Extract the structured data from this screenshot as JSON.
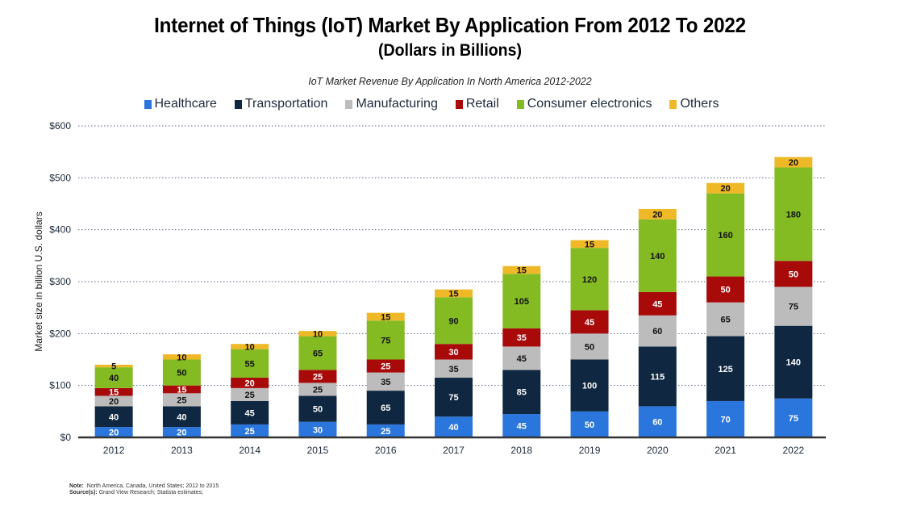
{
  "header": {
    "title": "Internet of Things (IoT) Market By Application From 2012 To 2022",
    "units": "(Dollars in Billions)",
    "chart_subtitle": "IoT Market Revenue By Application In North America 2012-2022"
  },
  "footer": {
    "note_label": "Note:",
    "note_text": "North America, Canada, United States; 2012 to 2015",
    "source_label": "Source(s):",
    "source_text": "Grand View Research; Statista estimates;"
  },
  "chart_data": {
    "type": "bar",
    "stacked": true,
    "title": "Internet of Things (IoT) Market By Application From 2012 To 2022",
    "subtitle": "IoT Market Revenue By Application In North America 2012-2022",
    "xlabel": "",
    "ylabel": "Market size in billion U.S. dollars",
    "ylim": [
      0,
      600
    ],
    "yticks": [
      0,
      100,
      200,
      300,
      400,
      500,
      600
    ],
    "ytick_labels": [
      "$0",
      "$100",
      "$200",
      "$300",
      "$400",
      "$500",
      "$600"
    ],
    "grid": true,
    "legend_position": "top",
    "categories": [
      "2012",
      "2013",
      "2014",
      "2015",
      "2016",
      "2017",
      "2018",
      "2019",
      "2020",
      "2021",
      "2022"
    ],
    "series": [
      {
        "name": "Healthcare",
        "color": "#2a76dd",
        "label_color": "#ffffff",
        "values": [
          20,
          20,
          25,
          30,
          25,
          40,
          45,
          50,
          60,
          70,
          75
        ]
      },
      {
        "name": "Transportation",
        "color": "#0f2740",
        "label_color": "#ffffff",
        "values": [
          40,
          40,
          45,
          50,
          65,
          75,
          85,
          100,
          115,
          125,
          140
        ]
      },
      {
        "name": "Manufacturing",
        "color": "#bcbcbc",
        "label_color": "#111111",
        "values": [
          20,
          25,
          25,
          25,
          35,
          35,
          45,
          50,
          60,
          65,
          75
        ]
      },
      {
        "name": "Retail",
        "color": "#a80a0a",
        "label_color": "#ffffff",
        "values": [
          15,
          15,
          20,
          25,
          25,
          30,
          35,
          45,
          45,
          50,
          50
        ]
      },
      {
        "name": "Consumer electronics",
        "color": "#84bb22",
        "label_color": "#111111",
        "values": [
          40,
          50,
          55,
          65,
          75,
          90,
          105,
          120,
          140,
          160,
          180
        ]
      },
      {
        "name": "Others",
        "color": "#efb827",
        "label_color": "#111111",
        "values": [
          5,
          10,
          10,
          10,
          15,
          15,
          15,
          15,
          20,
          20,
          20
        ]
      }
    ]
  }
}
